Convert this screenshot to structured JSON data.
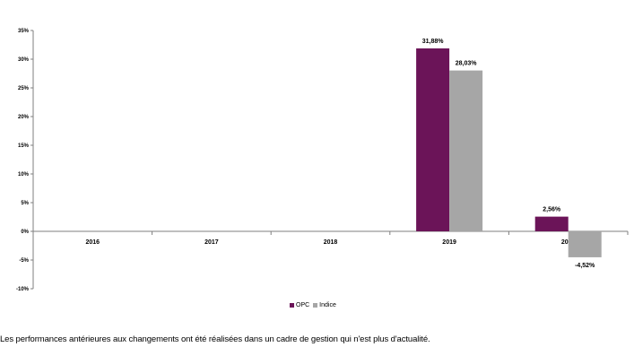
{
  "chart_data": {
    "type": "bar",
    "categories": [
      "2016",
      "2017",
      "2018",
      "2019",
      "2020"
    ],
    "series": [
      {
        "name": "OPC",
        "color": "#6B1458",
        "values": [
          null,
          null,
          null,
          31.88,
          2.56
        ],
        "labels": [
          "",
          "",
          "",
          "31,88%",
          "2,56%"
        ]
      },
      {
        "name": "Indice",
        "color": "#A6A6A6",
        "values": [
          null,
          null,
          null,
          28.03,
          -4.52
        ],
        "labels": [
          "",
          "",
          "",
          "28,03%",
          "-4,52%"
        ]
      }
    ],
    "ylim": [
      -10,
      35
    ],
    "yticks": [
      {
        "value": 35,
        "label": "35%"
      },
      {
        "value": 30,
        "label": "30%"
      },
      {
        "value": 25,
        "label": "25%"
      },
      {
        "value": 20,
        "label": "20%"
      },
      {
        "value": 15,
        "label": "15%"
      },
      {
        "value": 10,
        "label": "10%"
      },
      {
        "value": 5,
        "label": "5%"
      },
      {
        "value": 0,
        "label": "0%"
      },
      {
        "value": -5,
        "label": "-5%"
      },
      {
        "value": -10,
        "label": "-10%"
      }
    ],
    "legend": {
      "position": "bottom-center"
    },
    "grid": false
  },
  "footnote": "Les performances antérieures aux changements ont été réalisées dans un cadre de gestion qui n'est plus d'actualité."
}
